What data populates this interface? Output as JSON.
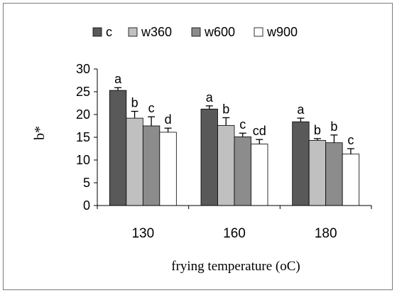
{
  "chart_data": {
    "type": "bar",
    "title": "",
    "xlabel": "frying temperature (oC)",
    "ylabel": "b*",
    "ylim": [
      0,
      30
    ],
    "yticks": [
      0,
      5,
      10,
      15,
      20,
      25,
      30
    ],
    "categories": [
      "130",
      "160",
      "180"
    ],
    "legend_position": "top",
    "grid": false,
    "series": [
      {
        "name": "c",
        "color": "#595959",
        "values": [
          25.3,
          21.2,
          18.4
        ],
        "errors": [
          0.6,
          0.7,
          0.8
        ],
        "labels": [
          "a",
          "a",
          "a"
        ]
      },
      {
        "name": "w360",
        "color": "#c0c0c0",
        "values": [
          19.2,
          17.6,
          14.3
        ],
        "errors": [
          1.5,
          1.7,
          0.4
        ],
        "labels": [
          "b",
          "b",
          "b"
        ]
      },
      {
        "name": "w600",
        "color": "#8c8c8c",
        "values": [
          17.5,
          15.1,
          13.8
        ],
        "errors": [
          2.0,
          0.8,
          1.7
        ],
        "labels": [
          "c",
          "c",
          "b"
        ]
      },
      {
        "name": "w900",
        "color": "#ffffff",
        "values": [
          16.1,
          13.5,
          11.3
        ],
        "errors": [
          0.9,
          1.0,
          1.2
        ],
        "labels": [
          "d",
          "cd",
          "c"
        ]
      }
    ]
  }
}
